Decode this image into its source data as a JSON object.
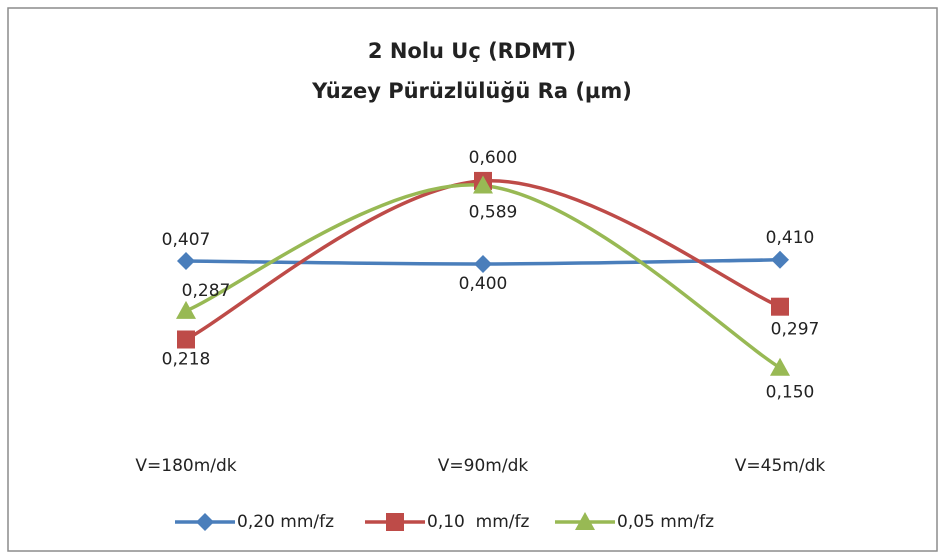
{
  "chart_data": {
    "type": "line",
    "title": [
      "2 Nolu Uç (RDMT)",
      "Yüzey Pürüzlülüğü Ra (µm)"
    ],
    "categories": [
      "V=180m/dk",
      "V=90m/dk",
      "V=45m/dk"
    ],
    "ylim": [
      0,
      0.7
    ],
    "smooth": true,
    "series": [
      {
        "name": "0,20 mm/fz",
        "color": "#4a7ebb",
        "marker": "diamond",
        "values": [
          0.407,
          0.4,
          0.41
        ],
        "value_labels": [
          "0,407",
          "0,400",
          "0,410"
        ]
      },
      {
        "name": "0,10  mm/fz",
        "color": "#be4b48",
        "marker": "square",
        "values": [
          0.218,
          0.6,
          0.297
        ],
        "value_labels": [
          "0,218",
          "0,600",
          "0,297"
        ]
      },
      {
        "name": "0,05 mm/fz",
        "color": "#98b954",
        "marker": "triangle",
        "values": [
          0.287,
          0.589,
          0.15
        ],
        "value_labels": [
          "0,287",
          "0,589",
          "0,150"
        ]
      }
    ]
  }
}
